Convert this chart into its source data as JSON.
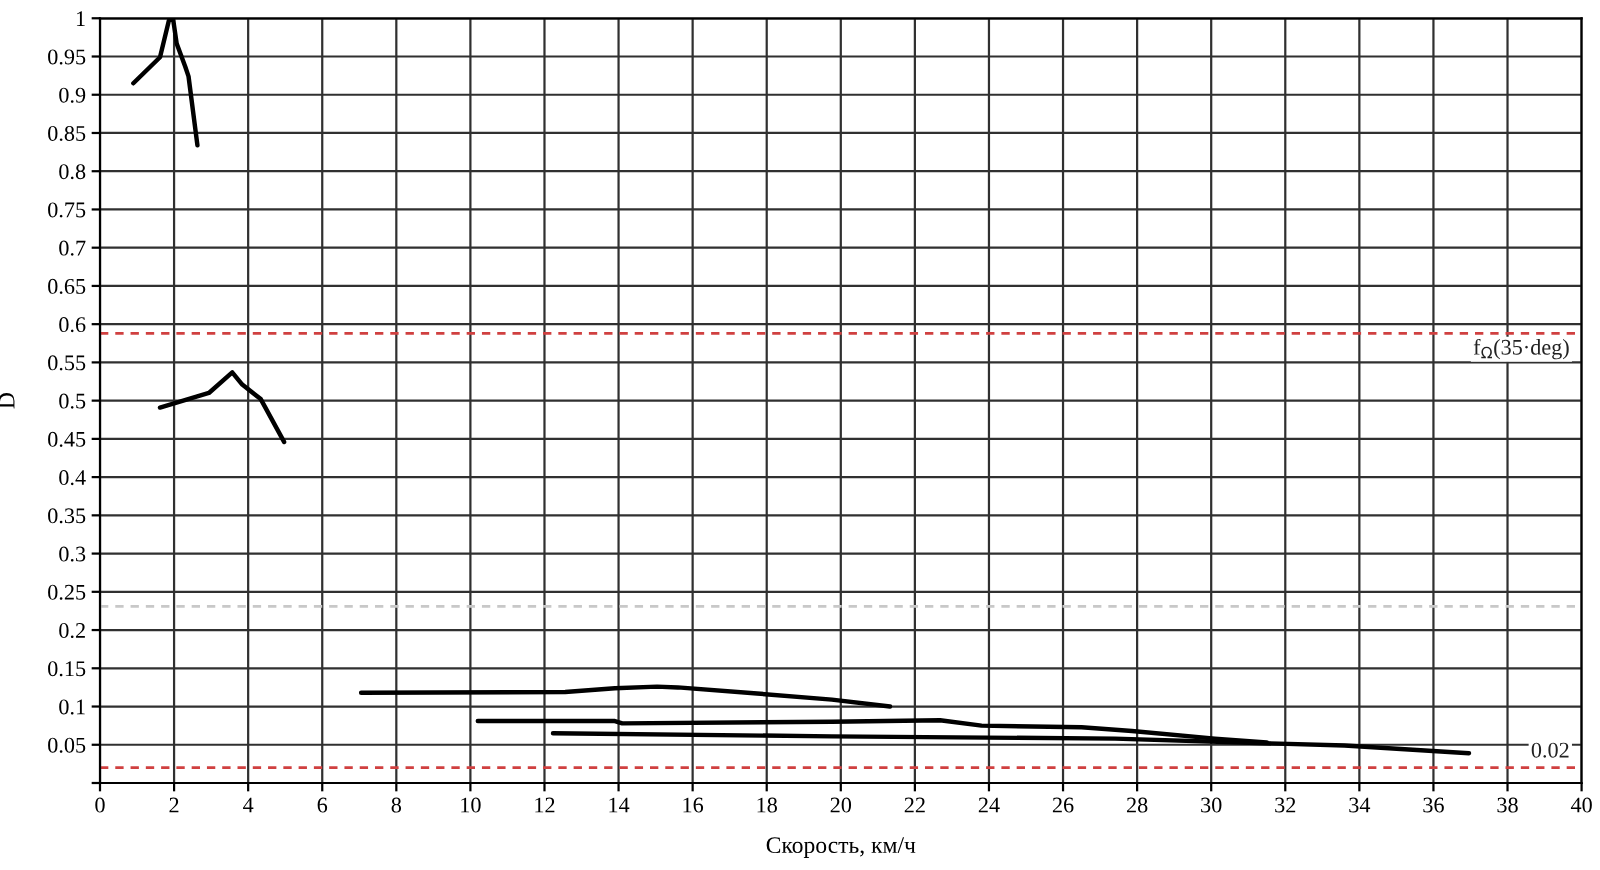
{
  "chart_data": {
    "type": "line",
    "xlabel": "Скорость, км/ч",
    "ylabel": "D",
    "xlim": [
      0,
      40
    ],
    "ylim": [
      0,
      1
    ],
    "xticks": [
      0,
      2,
      4,
      6,
      8,
      10,
      12,
      14,
      16,
      18,
      20,
      22,
      24,
      26,
      28,
      30,
      32,
      34,
      36,
      38,
      40
    ],
    "yticks": [
      {
        "value": 0,
        "label": null
      },
      0.05,
      0.1,
      0.15,
      0.2,
      0.25,
      0.3,
      0.35,
      0.4,
      0.45,
      0.5,
      0.55,
      0.6,
      0.65,
      0.7,
      0.75,
      0.8,
      0.85,
      0.9,
      0.95,
      1
    ],
    "grid": true,
    "line_style": "solid",
    "series": [
      {
        "color": "#000000",
        "x": [
          0.9,
          1.62,
          1.86,
          1.97,
          2.07,
          2.3,
          2.39,
          2.63
        ],
        "values": [
          0.915,
          0.949,
          0.997,
          1.0,
          0.967,
          0.937,
          0.924,
          0.834
        ]
      },
      {
        "color": "#000000",
        "x": [
          1.62,
          2.94,
          3.57,
          3.84,
          4.34,
          4.97
        ],
        "values": [
          0.491,
          0.51,
          0.537,
          0.521,
          0.502,
          0.446
        ]
      },
      {
        "color": "#000000",
        "x": [
          7.05,
          12.56,
          13.9,
          15.04,
          15.6,
          17.74,
          19.76,
          21.33
        ],
        "values": [
          0.118,
          0.119,
          0.124,
          0.126,
          0.125,
          0.117,
          0.109,
          0.1
        ]
      },
      {
        "color": "#000000",
        "x": [
          10.2,
          13.9,
          14.1,
          19.76,
          22.68,
          23.8,
          26.5,
          27.86,
          30.1,
          31.5
        ],
        "values": [
          0.081,
          0.081,
          0.078,
          0.08,
          0.082,
          0.075,
          0.073,
          0.068,
          0.058,
          0.053
        ]
      },
      {
        "color": "#000000",
        "x": [
          12.23,
          19.76,
          27.4,
          31.45,
          33.6,
          36.96
        ],
        "values": [
          0.065,
          0.061,
          0.058,
          0.052,
          0.049,
          0.039
        ]
      }
    ],
    "ref_lines": [
      {
        "axis": "y",
        "value": 0.588,
        "label": "f$_{Ω}$(35·deg)",
        "color": "#d04040",
        "line_style": "dashed"
      },
      {
        "axis": "y",
        "value": 0.02,
        "label": "0.02",
        "color": "#d04040",
        "line_style": "dashed"
      },
      {
        "axis": "y",
        "value": 0.231,
        "color": "#c8c8c8",
        "line_style": "dashed"
      }
    ]
  }
}
